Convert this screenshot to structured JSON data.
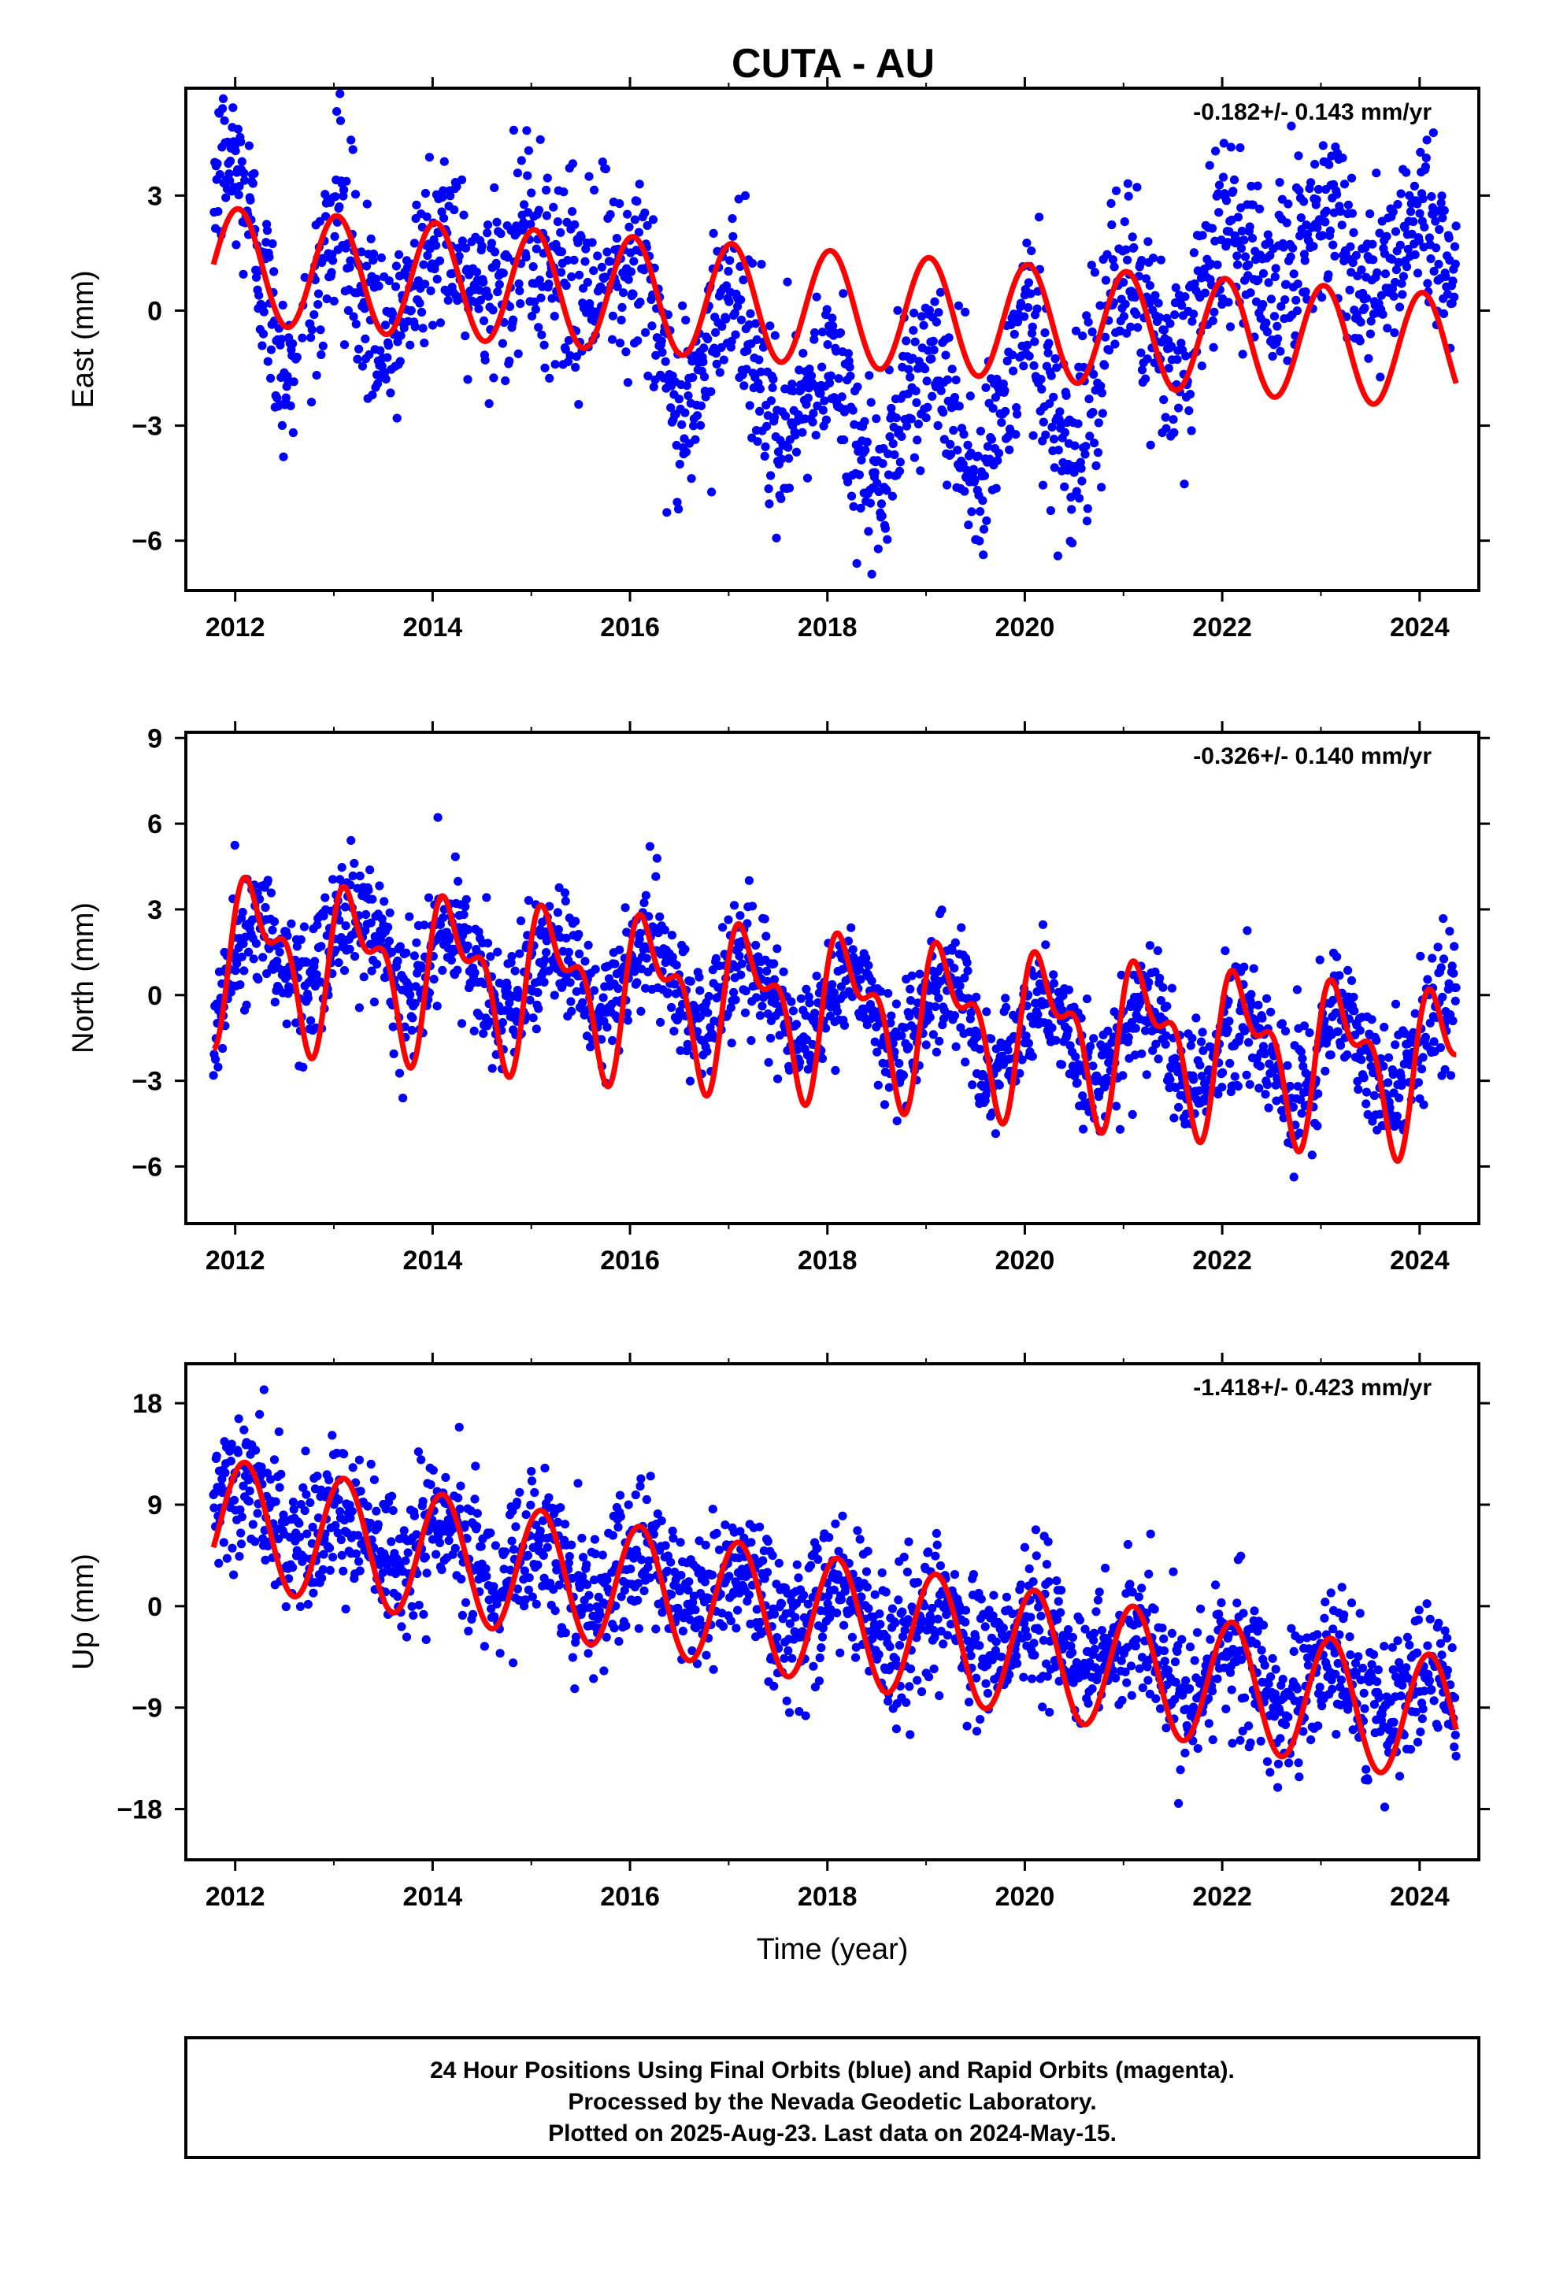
{
  "title": "CUTA - AU",
  "footer": {
    "lines": [
      "24 Hour Positions Using Final Orbits (blue) and Rapid Orbits (magenta).",
      "Processed by the Nevada Geodetic Laboratory.",
      "Plotted on 2025-Aug-23. Last data on 2024-May-15."
    ]
  },
  "colors": {
    "observed": "#0000ff",
    "model": "#ff0000",
    "axis": "#000000"
  },
  "chart_data": [
    {
      "type": "scatter",
      "component": "East",
      "ylabel": "East (mm)",
      "xlabel": "",
      "rate_text": "-0.182+/- 0.143 mm/yr",
      "xlim": [
        2011.5,
        2024.6
      ],
      "ylim": [
        -7.3,
        5.8
      ],
      "xticks": [
        2012,
        2014,
        2016,
        2018,
        2020,
        2022,
        2024
      ],
      "yticks": [
        -6,
        -3,
        0,
        3
      ],
      "ytick_labels": [
        "−6",
        "−3",
        "0",
        "3"
      ],
      "data_start": 2011.78,
      "data_end": 2024.37,
      "series": [
        {
          "name": "Final Orbits (blue)",
          "kind": "points",
          "anchors_x": [
            2011.8,
            2012.0,
            2012.5,
            2013.0,
            2013.5,
            2014.0,
            2015.0,
            2016.0,
            2016.5,
            2017.0,
            2017.5,
            2018.0,
            2018.5,
            2019.0,
            2019.5,
            2020.0,
            2020.5,
            2021.0,
            2021.5,
            2022.0,
            2022.5,
            2023.0,
            2023.5,
            2024.0,
            2024.37
          ],
          "anchors_y": [
            3.5,
            3.2,
            -1.0,
            1.8,
            -0.5,
            1.5,
            1.2,
            1.0,
            -2.0,
            0.3,
            -3.0,
            -2.0,
            -4.0,
            -1.5,
            -4.0,
            -1.0,
            -3.5,
            0.5,
            -1.0,
            1.5,
            1.0,
            2.2,
            1.2,
            2.0,
            1.0
          ],
          "noise_sd": 1.2,
          "annual_amp": 1.2,
          "annual_phase": 0.05
        },
        {
          "name": "model",
          "kind": "line",
          "offset": 1.2,
          "rate": -0.182,
          "t0": 2011.78,
          "annual_amp": 1.5,
          "annual_phase": 0.03,
          "semiannual_amp": 0.0,
          "semiannual_phase": 0.0
        }
      ]
    },
    {
      "type": "scatter",
      "component": "North",
      "ylabel": "North (mm)",
      "xlabel": "",
      "rate_text": "-0.326+/- 0.140 mm/yr",
      "xlim": [
        2011.5,
        2024.6
      ],
      "ylim": [
        -8.0,
        9.2
      ],
      "xticks": [
        2012,
        2014,
        2016,
        2018,
        2020,
        2022,
        2024
      ],
      "yticks": [
        -6,
        -3,
        0,
        3,
        6,
        9
      ],
      "ytick_labels": [
        "−6",
        "−3",
        "0",
        "3",
        "6",
        "9"
      ],
      "data_start": 2011.78,
      "data_end": 2024.37,
      "series": [
        {
          "name": "Final Orbits (blue)",
          "kind": "points",
          "anchors_x": [
            2011.8,
            2012.0,
            2013.0,
            2014.0,
            2015.0,
            2016.0,
            2017.0,
            2018.0,
            2019.0,
            2020.0,
            2021.0,
            2022.0,
            2023.0,
            2024.0,
            2024.37
          ],
          "anchors_y": [
            0.0,
            1.0,
            1.8,
            1.0,
            0.5,
            0.5,
            0.3,
            -0.5,
            -0.8,
            -1.5,
            -1.8,
            -2.0,
            -2.0,
            -2.2,
            -1.0
          ],
          "noise_sd": 1.1,
          "annual_amp": 2.4,
          "annual_phase": 0.2
        },
        {
          "name": "model",
          "kind": "line",
          "offset": 1.5,
          "rate": -0.326,
          "t0": 2011.78,
          "annual_amp": 2.3,
          "annual_phase": 0.22,
          "semiannual_amp": 1.3,
          "semiannual_phase": 0.05
        }
      ]
    },
    {
      "type": "scatter",
      "component": "Up",
      "ylabel": "Up (mm)",
      "xlabel": "Time (year)",
      "rate_text": "-1.418+/- 0.423 mm/yr",
      "xlim": [
        2011.5,
        2024.6
      ],
      "ylim": [
        -22.5,
        21.5
      ],
      "xticks": [
        2012,
        2014,
        2016,
        2018,
        2020,
        2022,
        2024
      ],
      "yticks": [
        -18,
        -9,
        0,
        9,
        18
      ],
      "ytick_labels": [
        "−18",
        "−9",
        "0",
        "9",
        "18"
      ],
      "data_start": 2011.78,
      "data_end": 2024.37,
      "series": [
        {
          "name": "Final Orbits (blue)",
          "kind": "points",
          "anchors_x": [
            2011.8,
            2012.1,
            2013.0,
            2014.0,
            2015.0,
            2016.0,
            2017.0,
            2018.0,
            2019.0,
            2020.0,
            2021.0,
            2022.0,
            2023.0,
            2024.0,
            2024.37
          ],
          "anchors_y": [
            8.0,
            9.0,
            7.0,
            5.5,
            4.0,
            2.5,
            1.0,
            -0.5,
            -2.0,
            -3.0,
            -4.5,
            -6.0,
            -7.0,
            -8.0,
            -9.0
          ],
          "noise_sd": 3.2,
          "annual_amp": 4.0,
          "annual_phase": 0.12
        },
        {
          "name": "model",
          "kind": "line",
          "offset": 7.6,
          "rate": -1.418,
          "t0": 2011.78,
          "annual_amp": 5.6,
          "annual_phase": 0.1,
          "semiannual_amp": 0.0,
          "semiannual_phase": 0.0
        }
      ]
    }
  ]
}
